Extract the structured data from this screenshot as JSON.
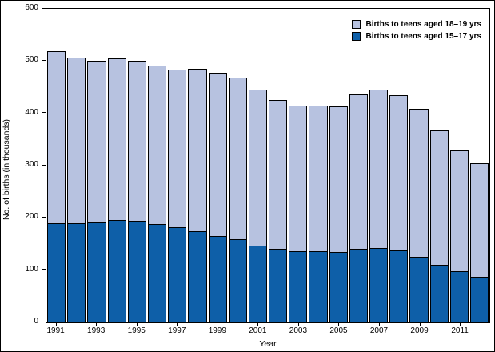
{
  "chart_data": {
    "type": "bar",
    "stacked": true,
    "title": "",
    "xlabel": "Year",
    "ylabel": "No. of births (in thousands)",
    "ylim": [
      0,
      600
    ],
    "yticks": [
      0,
      100,
      200,
      300,
      400,
      500,
      600
    ],
    "grid": false,
    "legend_position": "top-right-inside",
    "categories": [
      1991,
      1992,
      1993,
      1994,
      1995,
      1996,
      1997,
      1998,
      1999,
      2000,
      2001,
      2002,
      2003,
      2004,
      2005,
      2006,
      2007,
      2008,
      2009,
      2010,
      2011,
      2012
    ],
    "xtick_labeled_years": [
      1991,
      1993,
      1995,
      1997,
      1999,
      2001,
      2003,
      2005,
      2007,
      2009,
      2011
    ],
    "series": [
      {
        "name": "Births to teens aged 15–17 yrs",
        "color": "#0e5fa8",
        "values": [
          188,
          188,
          190,
          195,
          193,
          186,
          180,
          173,
          164,
          157,
          145,
          139,
          134,
          134,
          133,
          139,
          141,
          136,
          124,
          109,
          97,
          86
        ]
      },
      {
        "name": "Births to teens aged 18–19 yrs",
        "color": "#b7c2e0",
        "values": [
          331,
          318,
          311,
          310,
          307,
          306,
          303,
          312,
          313,
          312,
          300,
          287,
          281,
          281,
          281,
          297,
          305,
          299,
          285,
          258,
          232,
          219
        ]
      }
    ],
    "legend_order": [
      1,
      0
    ],
    "bar_border_color": "#000000"
  }
}
